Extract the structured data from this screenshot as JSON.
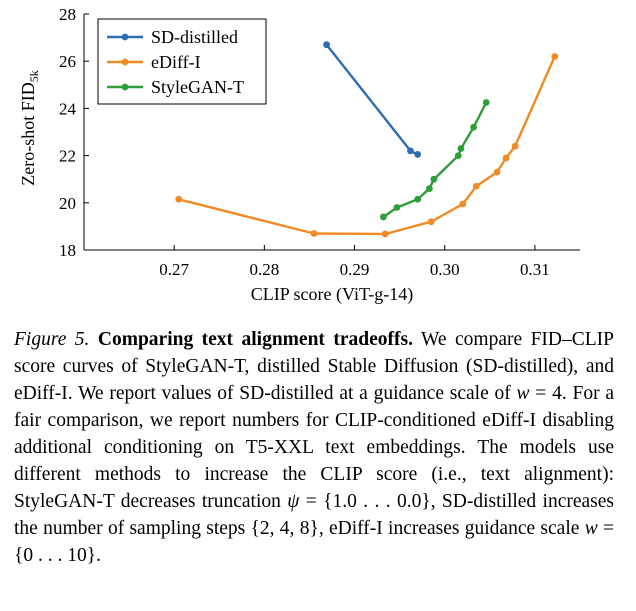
{
  "chart_data": {
    "type": "line",
    "title": "",
    "xlabel": "CLIP score (ViT-g-14)",
    "ylabel": "Zero-shot FID",
    "ylabel_subscript": "5k",
    "xlim": [
      0.26,
      0.315
    ],
    "ylim": [
      18,
      28
    ],
    "x_ticks": [
      0.27,
      0.28,
      0.29,
      0.3,
      0.31
    ],
    "x_tick_labels": [
      "0.27",
      "0.28",
      "0.29",
      "0.30",
      "0.31"
    ],
    "y_ticks": [
      18,
      20,
      22,
      24,
      26,
      28
    ],
    "y_tick_labels": [
      "18",
      "20",
      "22",
      "24",
      "26",
      "28"
    ],
    "grid": false,
    "legend_position": "top-left",
    "series": [
      {
        "name": "SD-distilled",
        "color": "#2c6fb0",
        "x": [
          0.2869,
          0.2962,
          0.297
        ],
        "y": [
          26.7,
          22.2,
          22.05
        ]
      },
      {
        "name": "eDiff-I",
        "color": "#f08a24",
        "x": [
          0.2705,
          0.2855,
          0.2934,
          0.2985,
          0.302,
          0.3035,
          0.3058,
          0.3068,
          0.3078,
          0.3122
        ],
        "y": [
          20.15,
          18.7,
          18.68,
          19.2,
          19.95,
          20.7,
          21.3,
          21.9,
          22.4,
          26.2
        ]
      },
      {
        "name": "StyleGAN-T",
        "color": "#2f9e3a",
        "x": [
          0.2932,
          0.2947,
          0.297,
          0.2983,
          0.2988,
          0.3015,
          0.3018,
          0.3032,
          0.3046
        ],
        "y": [
          19.4,
          19.8,
          20.15,
          20.6,
          21.0,
          22.0,
          22.3,
          23.2,
          24.25
        ]
      }
    ]
  },
  "caption": {
    "label": "Figure 5.",
    "title": "Comparing text alignment tradeoffs.",
    "body_1": " We compare FID–CLIP score curves of StyleGAN-T, distilled Stable Diffusion (SD-distilled), and eDiff-I. We report values of SD-distilled at a guidance scale of ",
    "math_w": "w",
    "math_eq_4": " = 4",
    "body_2": ". For a fair comparison, we report numbers for CLIP-conditioned eDiff-I disabling additional conditioning on T5-XXL text embeddings. The models use different methods to increase the CLIP score (i.e., text alignment): StyleGAN-T decreases truncation ",
    "math_psi": "ψ",
    "math_psi_set": " = {1.0 . . . 0.0}",
    "body_3": ", SD-distilled increases the number of sampling steps ",
    "math_steps": "{2, 4, 8}",
    "body_4": ", eDiff-I increases guidance scale ",
    "math_w2": "w",
    "math_w_set": " = {0 . . . 10}",
    "body_5": "."
  }
}
